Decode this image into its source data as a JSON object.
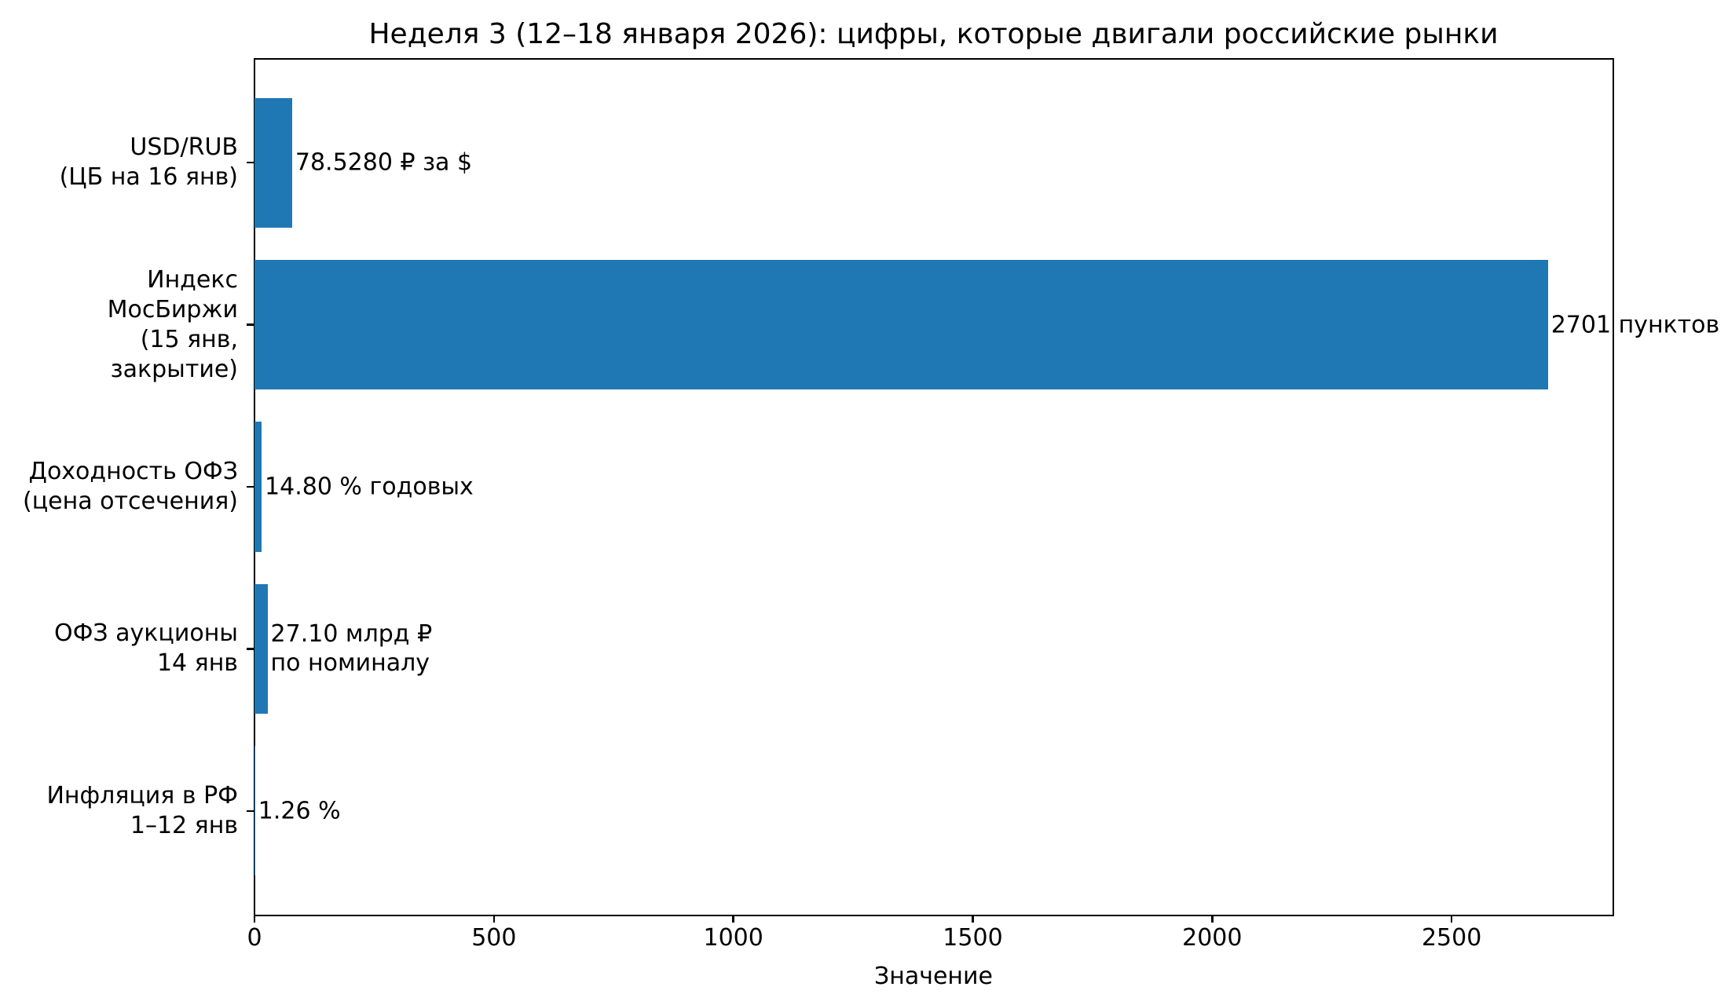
{
  "chart_data": {
    "type": "bar",
    "orientation": "horizontal",
    "title": "Неделя 3 (12–18 января 2026): цифры, которые двигали российские рынки",
    "xlabel": "Значение",
    "ylabel": "",
    "categories": [
      "USD/RUB\n(ЦБ на 16 янв)",
      "Индекс МосБиржи\n(15 янв, закрытие)",
      "Доходность ОФЗ\n(цена отсечения)",
      "ОФЗ аукционы\n14 янв",
      "Инфляция в РФ\n1–12 янв"
    ],
    "values": [
      78.528,
      2701,
      14.8,
      27.1,
      1.26
    ],
    "value_labels": [
      "78.5280 ₽ за $",
      "2701 пунктов",
      "14.80 % годовых",
      "27.10 млрд ₽\nпо номиналу",
      "1.26 %"
    ],
    "xlim": [
      0,
      2836
    ],
    "xticks": [
      0,
      500,
      1000,
      1500,
      2000,
      2500
    ],
    "bar_color": "#1f77b4",
    "axis_color": "#000000",
    "grid": false,
    "legend": null,
    "bar_height_frac": 0.8
  }
}
